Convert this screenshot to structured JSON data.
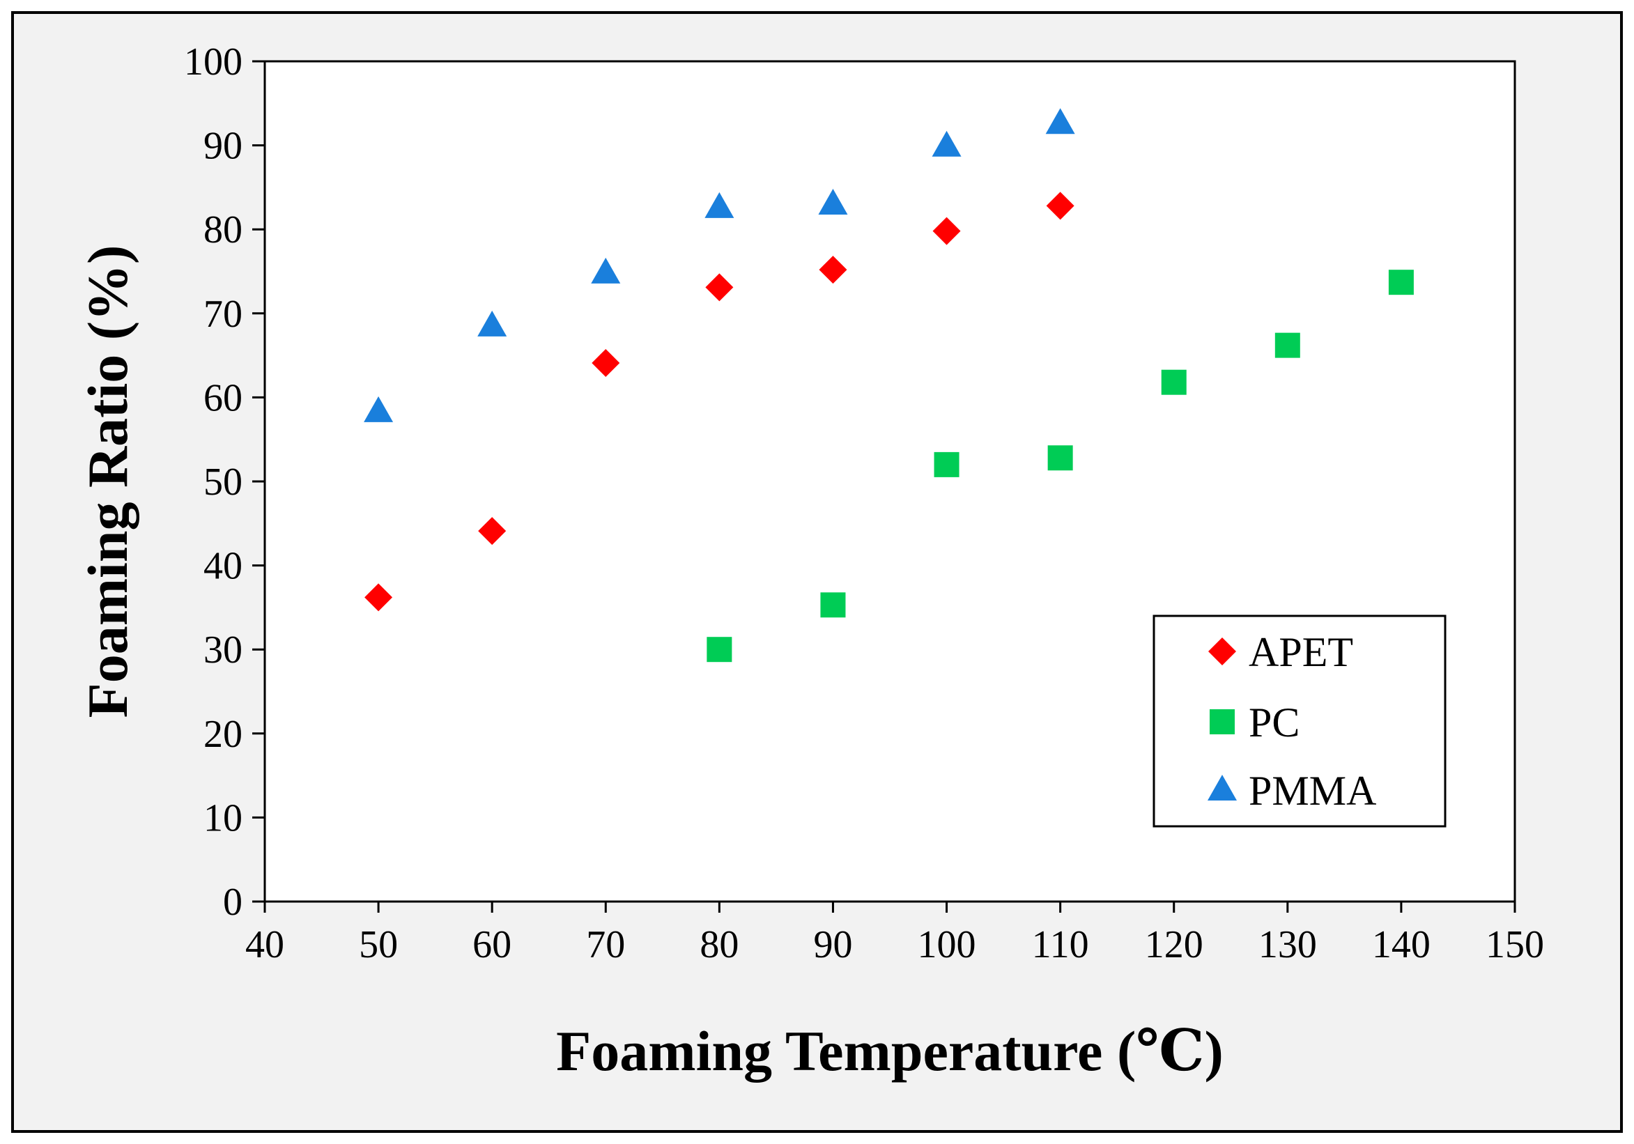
{
  "chart_data": {
    "type": "scatter",
    "title": "",
    "xlabel": "Foaming Temperature (℃)",
    "ylabel": "Foaming Ratio (%)",
    "xlim": [
      40,
      150
    ],
    "ylim": [
      0,
      100
    ],
    "xticks": [
      40,
      50,
      60,
      70,
      80,
      90,
      100,
      110,
      120,
      130,
      140,
      150
    ],
    "yticks": [
      0,
      10,
      20,
      30,
      40,
      50,
      60,
      70,
      80,
      90,
      100
    ],
    "grid": false,
    "legend_position": "bottom-right",
    "background": "#f2f2f2",
    "plot_background": "#ffffff",
    "series": [
      {
        "name": "APET",
        "marker": "diamond",
        "color": "#ff0000",
        "x": [
          50,
          60,
          70,
          80,
          90,
          100,
          110
        ],
        "y": [
          36.2,
          44.1,
          64.1,
          73.1,
          75.2,
          79.8,
          82.8
        ]
      },
      {
        "name": "PC",
        "marker": "square",
        "color": "#00cc55",
        "x": [
          80,
          90,
          100,
          110,
          120,
          130,
          140
        ],
        "y": [
          30.0,
          35.3,
          52.0,
          52.8,
          61.8,
          66.2,
          73.7
        ]
      },
      {
        "name": "PMMA",
        "marker": "triangle",
        "color": "#1a7fdc",
        "x": [
          50,
          60,
          70,
          80,
          90,
          100,
          110
        ],
        "y": [
          58.3,
          68.5,
          74.8,
          82.6,
          83.0,
          89.9,
          92.6
        ]
      }
    ]
  }
}
